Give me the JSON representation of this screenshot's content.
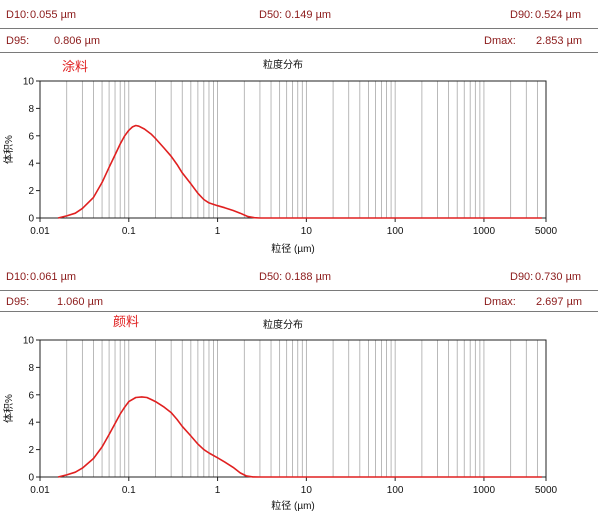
{
  "panels": [
    {
      "stats": {
        "d10_label": "D10:",
        "d10_value": "0.055  µm",
        "d50_label": "D50:",
        "d50_value": "0.149  µm",
        "d90_label": "D90:",
        "d90_value": "0.524  µm",
        "d95_label": "D95:",
        "d95_value": "0.806  µm",
        "dmax_label": "Dmax:",
        "dmax_value": "2.853  µm"
      },
      "sample_label": "涂料"
    },
    {
      "stats": {
        "d10_label": "D10:",
        "d10_value": "0.061  µm",
        "d50_label": "D50:",
        "d50_value": "0.188  µm",
        "d90_label": "D90:",
        "d90_value": "0.730  µm",
        "d95_label": "D95:",
        "d95_value": "1.060  µm",
        "dmax_label": "Dmax:",
        "dmax_value": "2.697  µm"
      },
      "sample_label": "颜料"
    }
  ],
  "colors": {
    "curve": "#e02020",
    "grid": "#a8a8a8",
    "stats_text": "#8b1a1a",
    "sample_label": "#e02020"
  },
  "chart_data": [
    {
      "type": "line",
      "title": "粒度分布",
      "xlabel": "粒径 (µm)",
      "ylabel": "体积%",
      "x_scale": "log",
      "xlim": [
        0.01,
        5000
      ],
      "ylim": [
        0,
        10
      ],
      "x_ticks": [
        0.01,
        0.1,
        1,
        10,
        100,
        1000,
        5000
      ],
      "x_tick_labels": [
        "0.01",
        "0.1",
        "1",
        "10",
        "100",
        "1000",
        "5000"
      ],
      "y_ticks": [
        0,
        2,
        4,
        6,
        8,
        10
      ],
      "y_tick_labels": [
        "0",
        "2",
        "4",
        "6",
        "8",
        "10"
      ],
      "grid": "vertical",
      "series": [
        {
          "x": [
            0.016,
            0.02,
            0.025,
            0.03,
            0.04,
            0.05,
            0.06,
            0.07,
            0.08,
            0.09,
            0.1,
            0.11,
            0.12,
            0.13,
            0.15,
            0.18,
            0.2,
            0.25,
            0.3,
            0.35,
            0.4,
            0.5,
            0.6,
            0.7,
            0.8,
            1.0,
            1.2,
            1.5,
            1.8,
            2.2,
            2.6,
            3.0,
            10,
            100,
            1000,
            4500
          ],
          "y": [
            0,
            0.15,
            0.35,
            0.7,
            1.5,
            2.6,
            3.7,
            4.6,
            5.4,
            6.0,
            6.4,
            6.65,
            6.75,
            6.7,
            6.5,
            6.1,
            5.8,
            5.1,
            4.5,
            3.9,
            3.3,
            2.5,
            1.8,
            1.35,
            1.1,
            0.9,
            0.75,
            0.55,
            0.35,
            0.1,
            0.02,
            0,
            0,
            0,
            0,
            0
          ]
        }
      ]
    },
    {
      "type": "line",
      "title": "粒度分布",
      "xlabel": "粒径 (µm)",
      "ylabel": "体积%",
      "x_scale": "log",
      "xlim": [
        0.01,
        5000
      ],
      "ylim": [
        0,
        10
      ],
      "x_ticks": [
        0.01,
        0.1,
        1,
        10,
        100,
        1000,
        5000
      ],
      "x_tick_labels": [
        "0.01",
        "0.1",
        "1",
        "10",
        "100",
        "1000",
        "5000"
      ],
      "y_ticks": [
        0,
        2,
        4,
        6,
        8,
        10
      ],
      "y_tick_labels": [
        "0",
        "2",
        "4",
        "6",
        "8",
        "10"
      ],
      "grid": "vertical",
      "series": [
        {
          "x": [
            0.016,
            0.02,
            0.025,
            0.03,
            0.04,
            0.05,
            0.06,
            0.07,
            0.08,
            0.09,
            0.1,
            0.12,
            0.14,
            0.16,
            0.18,
            0.2,
            0.25,
            0.3,
            0.35,
            0.4,
            0.5,
            0.6,
            0.7,
            0.8,
            1.0,
            1.2,
            1.5,
            1.8,
            2.1,
            2.5,
            3.0,
            10,
            100,
            1000,
            4500
          ],
          "y": [
            0,
            0.15,
            0.35,
            0.65,
            1.35,
            2.2,
            3.1,
            3.9,
            4.6,
            5.1,
            5.5,
            5.8,
            5.85,
            5.8,
            5.65,
            5.5,
            5.1,
            4.7,
            4.2,
            3.7,
            3.0,
            2.4,
            2.0,
            1.75,
            1.4,
            1.1,
            0.7,
            0.3,
            0.08,
            0.01,
            0,
            0,
            0,
            0,
            0
          ]
        }
      ]
    }
  ]
}
